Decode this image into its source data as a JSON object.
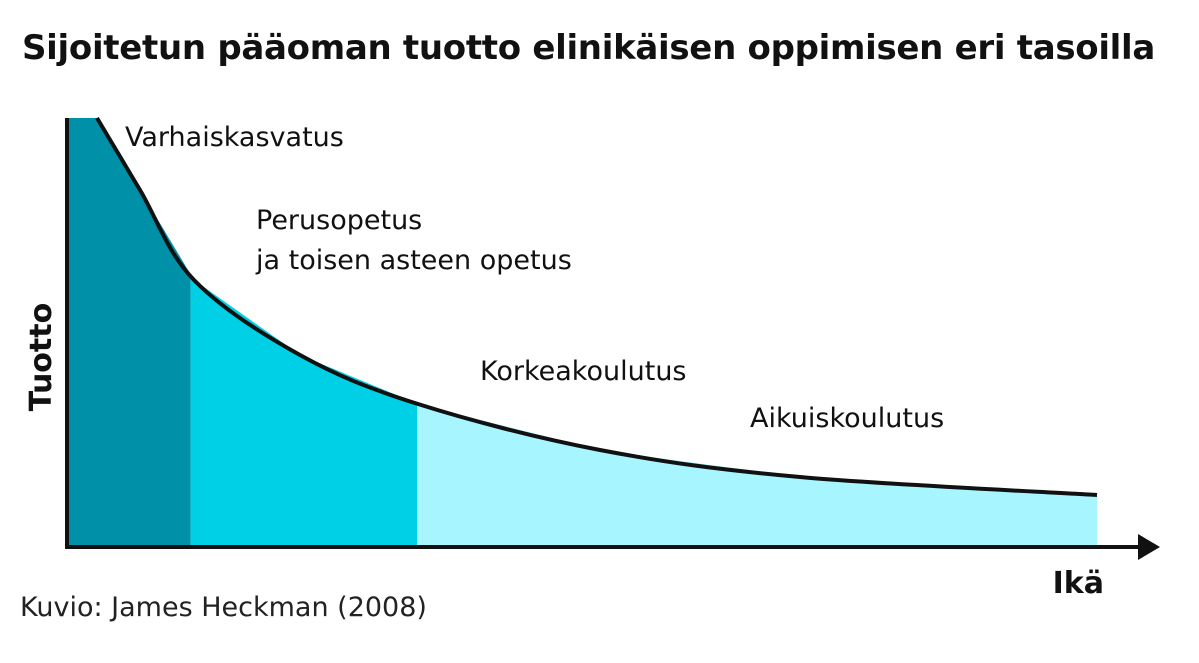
{
  "title": "Sijoitetun pääoman tuotto elinikäisen oppimisen eri tasoilla",
  "source": "Kuvio: James Heckman (2008)",
  "chart_data": {
    "type": "area",
    "xlabel": "Ikä",
    "ylabel": "Tuotto",
    "grid": false,
    "legend": "none",
    "segments": [
      {
        "name": "Varhaiskasvatus",
        "label_lines": [
          "Varhaiskasvatus"
        ],
        "x_end": 0.12,
        "color": "#0090A8"
      },
      {
        "name": "Perusopetus ja toisen asteen opetus",
        "label_lines": [
          "Perusopetus",
          "ja toisen asteen opetus"
        ],
        "x_end": 0.34,
        "color": "#00D0E6"
      },
      {
        "name": "Korkeakoulutus",
        "label_lines": [
          "Korkeakoulutus"
        ],
        "x_end": 1.0,
        "color": "#A6F5FF"
      },
      {
        "name": "Aikuiskoulutus",
        "label_lines": [
          "Aikuiskoulutus"
        ],
        "x_end": 1.0,
        "color": "#A6F5FF"
      }
    ],
    "curve_color": "#111111",
    "curve_shape": "decreasing hyperbolic return over age"
  }
}
